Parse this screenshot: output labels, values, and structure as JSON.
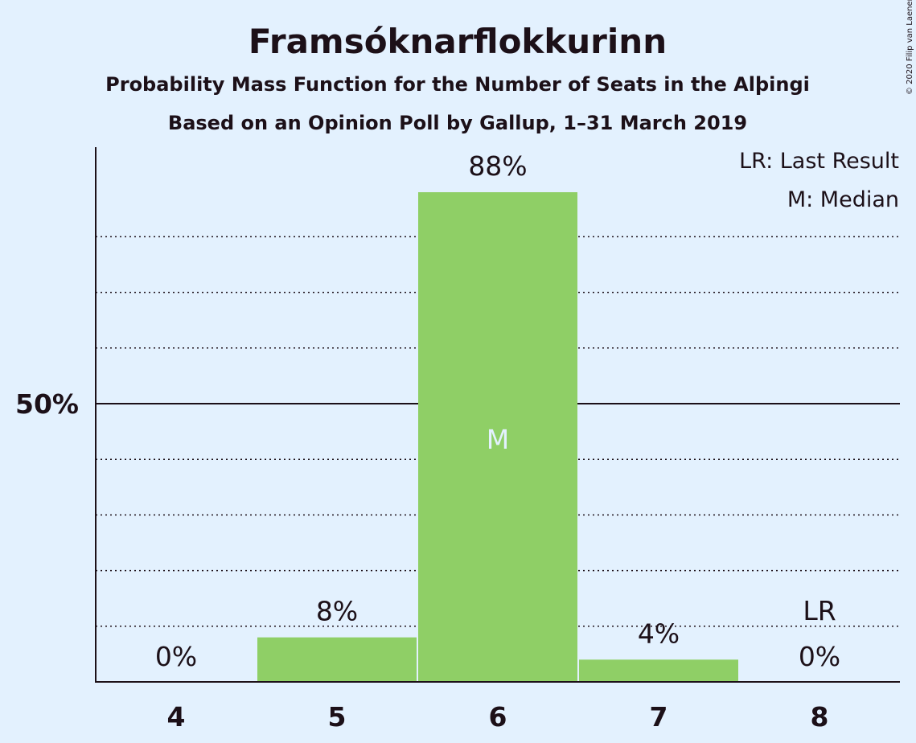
{
  "chart_data": {
    "type": "bar",
    "title": "Framsóknarflokkurinn",
    "subtitle": "Probability Mass Function for the Number of Seats in the Alþingi",
    "subtitle2": "Based on an Opinion Poll by Gallup, 1–31 March 2019",
    "categories": [
      "4",
      "5",
      "6",
      "7",
      "8"
    ],
    "values": [
      0,
      8,
      88,
      4,
      0
    ],
    "data_labels": [
      "0%",
      "8%",
      "88%",
      "4%",
      "0%"
    ],
    "median_category": "6",
    "median_marker": "M",
    "last_result_category": "8",
    "last_result_marker": "LR",
    "ylim": [
      0,
      96
    ],
    "y_ticks": [
      {
        "value": 50,
        "label": "50%"
      }
    ],
    "dotted_gridlines": [
      10,
      20,
      30,
      40,
      60,
      70,
      80
    ],
    "legend": [
      "LR: Last Result",
      "M: Median"
    ],
    "legend_position": "top-right",
    "copyright": "© 2020 Filip van Laenen",
    "colors": {
      "background": "#e3f1fe",
      "bar": "#8fcf66",
      "text": "#1c1018",
      "median_text": "#e3f1fe"
    }
  }
}
